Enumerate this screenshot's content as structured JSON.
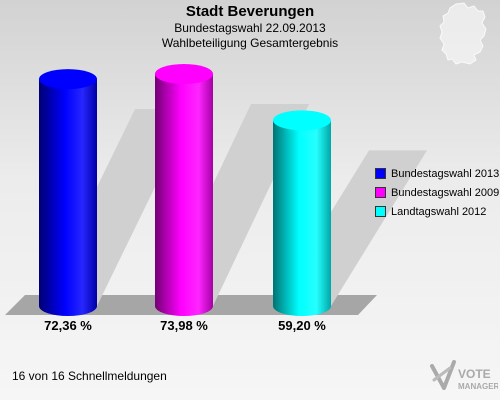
{
  "header": {
    "title": "Stadt Beverungen",
    "subtitle1": "Bundestagswahl 22.09.2013",
    "subtitle2": "Wahlbeteiligung Gesamtergebnis"
  },
  "chart_data": {
    "type": "bar",
    "categories": [
      "Bundestagswahl 2013",
      "Bundestagswahl 2009",
      "Landtagswahl 2012"
    ],
    "values": [
      72.36,
      73.98,
      59.2
    ],
    "value_labels": [
      "72,36 %",
      "73,98 %",
      "59,20 %"
    ],
    "colors": [
      "#0000ff",
      "#ff00ff",
      "#00ffff"
    ],
    "legend_position": "right",
    "grid": false
  },
  "legend": {
    "items": [
      {
        "label": "Bundestagswahl 2013",
        "color": "#0000ff"
      },
      {
        "label": "Bundestagswahl 2009",
        "color": "#ff00ff"
      },
      {
        "label": "Landtagswahl 2012",
        "color": "#00ffff"
      }
    ]
  },
  "footer": {
    "text": "16 von 16 Schnellmeldungen"
  },
  "logo": {
    "line1": "VOTE",
    "line2": "MANAGER"
  }
}
